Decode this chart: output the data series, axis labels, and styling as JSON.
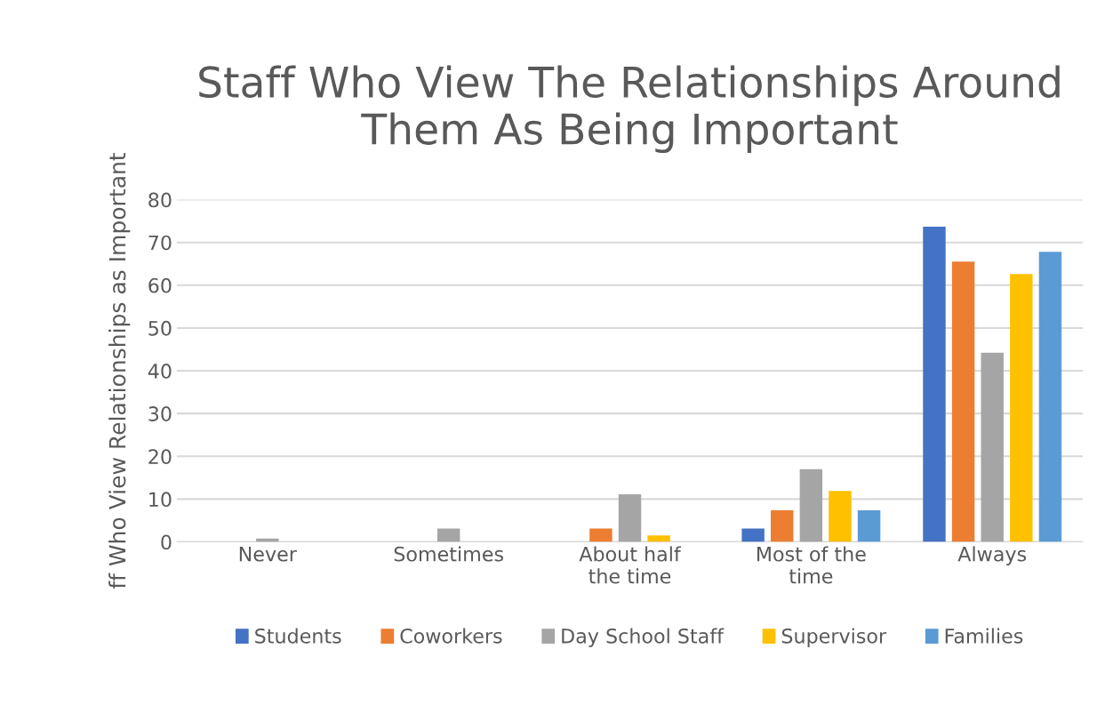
{
  "chart_data": {
    "type": "bar",
    "title": "Staff Who View The Relationships Around Them As Being Important",
    "ylabel": "ff Who View Relationships as Important",
    "categories": [
      "Never",
      "Sometimes",
      "About half the time",
      "Most of the time",
      "Always"
    ],
    "series": [
      {
        "name": "Students",
        "color": "#4472c4",
        "values": [
          0,
          0,
          0,
          3.1,
          73.7
        ]
      },
      {
        "name": "Coworkers",
        "color": "#ed7d31",
        "values": [
          0,
          0,
          3.1,
          7.4,
          65.5
        ]
      },
      {
        "name": "Day School Staff",
        "color": "#a5a5a5",
        "values": [
          0.8,
          3.1,
          11.1,
          17,
          44.2
        ]
      },
      {
        "name": "Supervisor",
        "color": "#ffc000",
        "values": [
          0,
          0,
          1.5,
          11.9,
          62.6
        ]
      },
      {
        "name": "Families",
        "color": "#5b9bd5",
        "values": [
          0,
          0,
          0,
          7.4,
          67.8
        ]
      }
    ],
    "ylim": [
      0,
      80
    ],
    "yticks": [
      0,
      10,
      20,
      30,
      40,
      50,
      60,
      70,
      80
    ],
    "grid": "y",
    "legend": "bottom"
  }
}
